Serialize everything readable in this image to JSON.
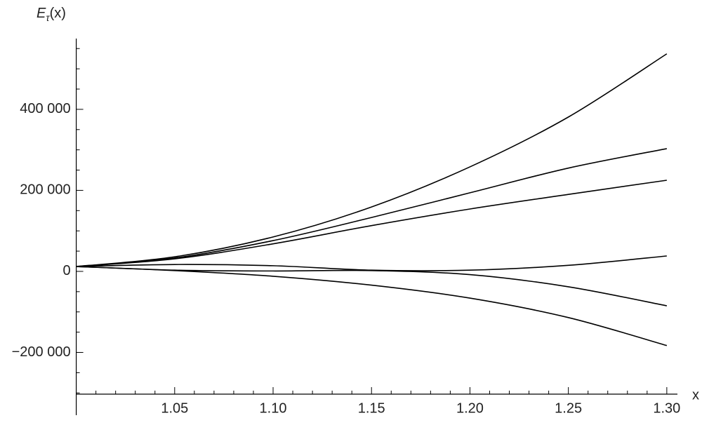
{
  "chart_data": {
    "type": "line",
    "y_label": "E",
    "y_label_subscript": "τ",
    "y_label_suffix": "(x)",
    "x_label": "x",
    "x": [
      1.0,
      1.05,
      1.1,
      1.15,
      1.2,
      1.25,
      1.3
    ],
    "series": [
      {
        "color": "#000000",
        "values": [
          12000,
          36000,
          85000,
          159000,
          258000,
          381000,
          537000
        ]
      },
      {
        "color": "#000000",
        "values": [
          12000,
          33000,
          76000,
          133000,
          194000,
          255000,
          303000
        ]
      },
      {
        "color": "#000000",
        "values": [
          12000,
          31000,
          68000,
          113000,
          154000,
          190000,
          225000
        ]
      },
      {
        "color": "#000000",
        "values": [
          12000,
          17000,
          14000,
          3000,
          3000,
          15000,
          38000
        ]
      },
      {
        "color": "#000000",
        "values": [
          12000,
          3000,
          1000,
          2000,
          -8000,
          -38000,
          -85000
        ]
      },
      {
        "color": "#000000",
        "values": [
          12000,
          2000,
          -12000,
          -34000,
          -66000,
          -114000,
          -183000
        ]
      }
    ],
    "xlim": [
      1.0,
      1.3054
    ],
    "ylim": [
      -303000,
      566000
    ],
    "xticks": [
      1.05,
      {
        "value": 1.1,
        "label": "1.10"
      },
      1.15,
      {
        "value": 1.2,
        "label": "1.20"
      },
      1.25,
      {
        "value": 1.3,
        "label": "1.30"
      }
    ],
    "yticks": [
      {
        "value": -200000,
        "label": "−200 000"
      },
      0,
      {
        "value": 200000,
        "label": "200 000"
      },
      {
        "value": 400000,
        "label": "400 000"
      }
    ],
    "xticks_minor": [
      1.01,
      1.02,
      1.03,
      1.04,
      1.06,
      1.07,
      1.08,
      1.09,
      1.11,
      1.12,
      1.13,
      1.14,
      1.16,
      1.17,
      1.18,
      1.19,
      1.21,
      1.22,
      1.23,
      1.24,
      1.26,
      1.27,
      1.28,
      1.29
    ],
    "yticks_minor": [
      -300000,
      -250000,
      -150000,
      -100000,
      -50000,
      50000,
      100000,
      150000,
      250000,
      300000,
      350000,
      450000,
      500000,
      550000
    ],
    "grid": false
  }
}
